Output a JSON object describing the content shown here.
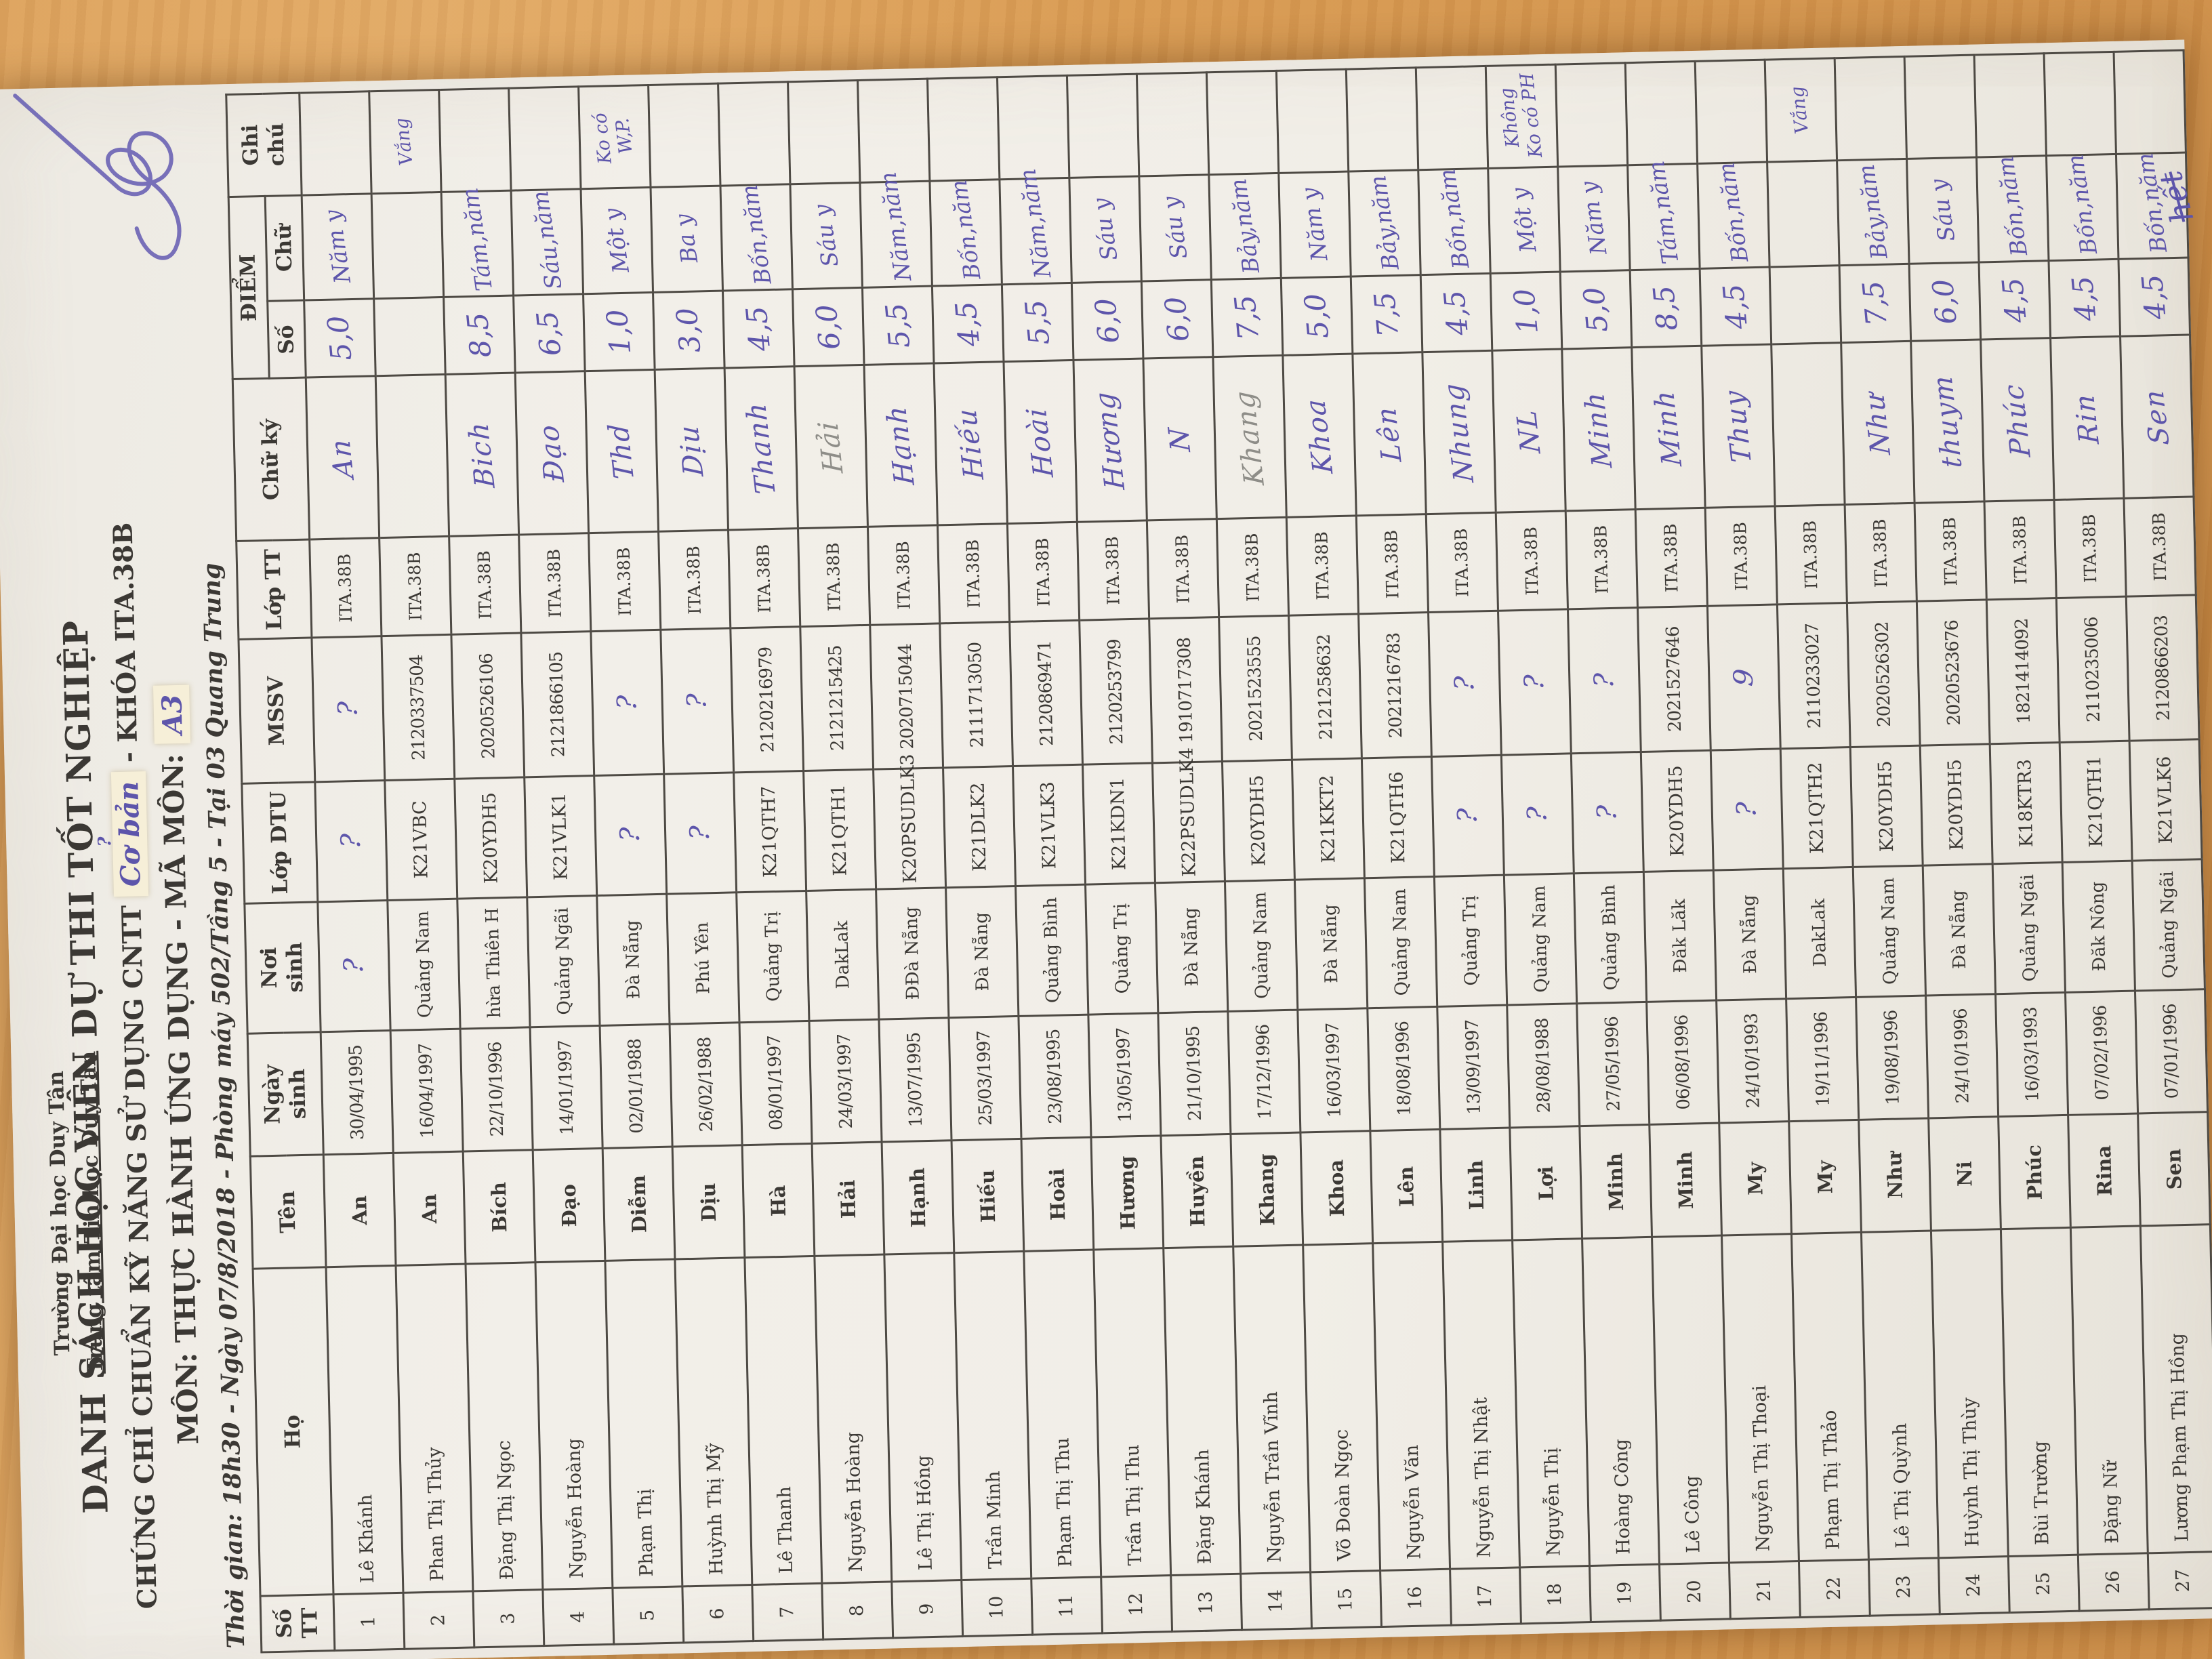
{
  "photo": {
    "surface": "wooden-desk",
    "wood_color": "#d89a52",
    "paper_color": "#f1eee8",
    "pen_color": "#5d55ab",
    "pencil_color": "#8e8d88"
  },
  "header": {
    "org_line1": "Trường Đại học Duy Tân",
    "org_line2": "Trung tâm Tin học Duy Tân",
    "title": "DANH SÁCH HỌC VIÊN DỰ THI TỐT NGHIỆP",
    "subtitle_prefix": "CHỨNG CHỈ CHUẨN KỸ NĂNG SỬ DỤNG CNTT",
    "subtitle_handwritten": "Cơ bản",
    "subtitle_hand_mark": "?",
    "subtitle_suffix": "- KHÓA ITA.38B",
    "mon_prefix": "MÔN: THỰC HÀNH ỨNG DỤNG - MÃ MÔN:",
    "mon_handwritten": "A3",
    "time_line": "Thời gian: 18h30 - Ngày 07/8/2018 - Phòng máy 502/Tầng 5 - Tại 03 Quang Trung"
  },
  "columns": {
    "stt": "Số\nTT",
    "ho": "Họ",
    "ten": "Tên",
    "ngay_sinh": "Ngày\nsinh",
    "noi_sinh": "Nơi\nsinh",
    "lop_dtu": "Lớp DTU",
    "mssv": "MSSV",
    "lop_tt": "Lớp TT",
    "chu_ky": "Chữ ký",
    "diem": "ĐIỂM",
    "diem_so": "Số",
    "diem_chu": "Chữ",
    "ghi_chu": "Ghi\nchú"
  },
  "rows": [
    {
      "stt": "1",
      "ho": "Lê Khánh",
      "ten": "An",
      "ngay_sinh": "30/04/1995",
      "noi_sinh": "?",
      "lop_dtu": "?",
      "mssv": "?",
      "lop_tt": "ITA.38B",
      "chu_ky": "An",
      "diem_so": "5,0",
      "diem_chu": "Năm y",
      "ghi_chu": ""
    },
    {
      "stt": "2",
      "ho": "Phan Thị Thủy",
      "ten": "An",
      "ngay_sinh": "16/04/1997",
      "noi_sinh": "Quảng Nam",
      "lop_dtu": "K21VBC",
      "mssv": "2120337504",
      "lop_tt": "ITA.38B",
      "chu_ky": "",
      "absent": true,
      "diem_so": "",
      "diem_chu": "",
      "ghi_chu": "Vắng"
    },
    {
      "stt": "3",
      "ho": "Đặng Thị Ngọc",
      "ten": "Bích",
      "ngay_sinh": "22/10/1996",
      "noi_sinh": "hừa Thiên H",
      "lop_dtu": "K20YDH5",
      "mssv": "2020526106",
      "lop_tt": "ITA.38B",
      "chu_ky": "Bich",
      "diem_so": "8,5",
      "diem_chu": "Tám,năm",
      "ghi_chu": ""
    },
    {
      "stt": "4",
      "ho": "Nguyễn Hoàng",
      "ten": "Đạo",
      "ngay_sinh": "14/01/1997",
      "noi_sinh": "Quảng Ngãi",
      "lop_dtu": "K21VLK1",
      "mssv": "2121866105",
      "lop_tt": "ITA.38B",
      "chu_ky": "Đạo",
      "diem_so": "6,5",
      "diem_chu": "Sáu,năm",
      "ghi_chu": ""
    },
    {
      "stt": "5",
      "ho": "Phạm Thị",
      "ten": "Diễm",
      "ngay_sinh": "02/01/1988",
      "noi_sinh": "Đà Nẵng",
      "lop_dtu": "?",
      "mssv": "?",
      "lop_tt": "ITA.38B",
      "chu_ky": "Thd",
      "diem_so": "1,0",
      "diem_chu": "Một y",
      "ghi_chu": "Ko có\nW,P."
    },
    {
      "stt": "6",
      "ho": "Huỳnh Thị Mỹ",
      "ten": "Dịu",
      "ngay_sinh": "26/02/1988",
      "noi_sinh": "Phú Yên",
      "lop_dtu": "?",
      "mssv": "?",
      "lop_tt": "ITA.38B",
      "chu_ky": "Dịu",
      "diem_so": "3,0",
      "diem_chu": "Ba y",
      "ghi_chu": ""
    },
    {
      "stt": "7",
      "ho": "Lê Thanh",
      "ten": "Hà",
      "ngay_sinh": "08/01/1997",
      "noi_sinh": "Quảng Trị",
      "lop_dtu": "K21QTH7",
      "mssv": "2120216979",
      "lop_tt": "ITA.38B",
      "chu_ky": "Thanh",
      "diem_so": "4,5",
      "diem_chu": "Bốn,năm",
      "ghi_chu": ""
    },
    {
      "stt": "8",
      "ho": "Nguyễn Hoàng",
      "ten": "Hải",
      "ngay_sinh": "24/03/1997",
      "noi_sinh": "DakLak",
      "lop_dtu": "K21QTH1",
      "mssv": "2121215425",
      "lop_tt": "ITA.38B",
      "chu_ky": "Hải",
      "pencil": true,
      "diem_so": "6,0",
      "diem_chu": "Sáu y",
      "ghi_chu": ""
    },
    {
      "stt": "9",
      "ho": "Lê Thị Hồng",
      "ten": "Hạnh",
      "ngay_sinh": "13/07/1995",
      "noi_sinh": "ĐĐà Nẵng",
      "lop_dtu": "K20PSUDLK3",
      "mssv": "2020715044",
      "lop_tt": "ITA.38B",
      "chu_ky": "Hạnh",
      "diem_so": "5,5",
      "diem_chu": "Năm,năm",
      "ghi_chu": ""
    },
    {
      "stt": "10",
      "ho": "Trần Minh",
      "ten": "Hiếu",
      "ngay_sinh": "25/03/1997",
      "noi_sinh": "Đà Nẵng",
      "lop_dtu": "K21DLK2",
      "mssv": "2111713050",
      "lop_tt": "ITA.38B",
      "chu_ky": "Hiếu",
      "diem_so": "4,5",
      "diem_chu": "Bốn,năm",
      "ghi_chu": ""
    },
    {
      "stt": "11",
      "ho": "Phạm Thị Thu",
      "ten": "Hoài",
      "ngay_sinh": "23/08/1995",
      "noi_sinh": "Quảng Bình",
      "lop_dtu": "K21VLK3",
      "mssv": "2120869471",
      "lop_tt": "ITA.38B",
      "chu_ky": "Hoài",
      "diem_so": "5,5",
      "diem_chu": "Năm,năm",
      "ghi_chu": ""
    },
    {
      "stt": "12",
      "ho": "Trần Thị Thu",
      "ten": "Hương",
      "ngay_sinh": "13/05/1997",
      "noi_sinh": "Quảng Trị",
      "lop_dtu": "K21KDN1",
      "mssv": "2120253799",
      "lop_tt": "ITA.38B",
      "chu_ky": "Hương",
      "diem_so": "6,0",
      "diem_chu": "Sáu y",
      "ghi_chu": ""
    },
    {
      "stt": "13",
      "ho": "Đặng Khánh",
      "ten": "Huyền",
      "ngay_sinh": "21/10/1995",
      "noi_sinh": "Đà Nẵng",
      "lop_dtu": "K22PSUDLK4",
      "mssv": "1910717308",
      "lop_tt": "ITA.38B",
      "chu_ky": "N",
      "diem_so": "6,0",
      "diem_chu": "Sáu y",
      "ghi_chu": ""
    },
    {
      "stt": "14",
      "ho": "Nguyễn Trần Vĩnh",
      "ten": "Khang",
      "ngay_sinh": "17/12/1996",
      "noi_sinh": "Quảng Nam",
      "lop_dtu": "K20YDH5",
      "mssv": "2021523555",
      "lop_tt": "ITA.38B",
      "chu_ky": "Khang",
      "pencil": true,
      "diem_so": "7,5",
      "diem_chu": "Bảy,năm",
      "ghi_chu": ""
    },
    {
      "stt": "15",
      "ho": "Võ Đoàn Ngọc",
      "ten": "Khoa",
      "ngay_sinh": "16/03/1997",
      "noi_sinh": "Đà Nẵng",
      "lop_dtu": "K21KKT2",
      "mssv": "2121258632",
      "lop_tt": "ITA.38B",
      "chu_ky": "Khoa",
      "diem_so": "5,0",
      "diem_chu": "Năm y",
      "ghi_chu": ""
    },
    {
      "stt": "16",
      "ho": "Nguyễn Văn",
      "ten": "Lên",
      "ngay_sinh": "18/08/1996",
      "noi_sinh": "Quảng Nam",
      "lop_dtu": "K21QTH6",
      "mssv": "2021216783",
      "lop_tt": "ITA.38B",
      "chu_ky": "Lên",
      "diem_so": "7,5",
      "diem_chu": "Bảy,năm",
      "ghi_chu": ""
    },
    {
      "stt": "17",
      "ho": "Nguyễn Thị Nhật",
      "ten": "Linh",
      "ngay_sinh": "13/09/1997",
      "noi_sinh": "Quảng Trị",
      "lop_dtu": "?",
      "mssv": "?",
      "lop_tt": "ITA.38B",
      "chu_ky": "Nhung",
      "diem_so": "4,5",
      "diem_chu": "Bốn,năm",
      "ghi_chu": ""
    },
    {
      "stt": "18",
      "ho": "Nguyễn Thị",
      "ten": "Lợi",
      "ngay_sinh": "28/08/1988",
      "noi_sinh": "Quảng Nam",
      "lop_dtu": "?",
      "mssv": "?",
      "lop_tt": "ITA.38B",
      "chu_ky": "NL",
      "diem_so": "1,0",
      "diem_chu": "Một y",
      "ghi_chu": "Không\nKo có PH"
    },
    {
      "stt": "19",
      "ho": "Hoàng Công",
      "ten": "Minh",
      "ngay_sinh": "27/05/1996",
      "noi_sinh": "Quảng Bình",
      "lop_dtu": "?",
      "mssv": "?",
      "lop_tt": "ITA.38B",
      "chu_ky": "Minh",
      "diem_so": "5,0",
      "diem_chu": "Năm y",
      "ghi_chu": ""
    },
    {
      "stt": "20",
      "ho": "Lê Công",
      "ten": "Minh",
      "ngay_sinh": "06/08/1996",
      "noi_sinh": "Đăk Lăk",
      "lop_dtu": "K20YDH5",
      "mssv": "2021527646",
      "lop_tt": "ITA.38B",
      "chu_ky": "Minh",
      "diem_so": "8,5",
      "diem_chu": "Tám,năm",
      "ghi_chu": ""
    },
    {
      "stt": "21",
      "ho": "Nguyễn Thị Thoại",
      "ten": "My",
      "ngay_sinh": "24/10/1993",
      "noi_sinh": "Đà Nẵng",
      "lop_dtu": "?",
      "mssv": "9",
      "lop_tt": "ITA.38B",
      "chu_ky": "Thuy",
      "diem_so": "4,5",
      "diem_chu": "Bốn,năm",
      "ghi_chu": ""
    },
    {
      "stt": "22",
      "ho": "Phạm Thị Thảo",
      "ten": "My",
      "ngay_sinh": "19/11/1996",
      "noi_sinh": "DakLak",
      "lop_dtu": "K21QTH2",
      "mssv": "2110233027",
      "lop_tt": "ITA.38B",
      "chu_ky": "",
      "absent": true,
      "diem_so": "",
      "diem_chu": "",
      "ghi_chu": "Vắng"
    },
    {
      "stt": "23",
      "ho": "Lê Thị Quỳnh",
      "ten": "Như",
      "ngay_sinh": "19/08/1996",
      "noi_sinh": "Quảng Nam",
      "lop_dtu": "K20YDH5",
      "mssv": "2020526302",
      "lop_tt": "ITA.38B",
      "chu_ky": "Như",
      "diem_so": "7,5",
      "diem_chu": "Bảy,năm",
      "ghi_chu": ""
    },
    {
      "stt": "24",
      "ho": "Huỳnh Thị Thùy",
      "ten": "Ni",
      "ngay_sinh": "24/10/1996",
      "noi_sinh": "Đà Nẵng",
      "lop_dtu": "K20YDH5",
      "mssv": "2020523676",
      "lop_tt": "ITA.38B",
      "chu_ky": "thuym",
      "diem_so": "6,0",
      "diem_chu": "Sáu y",
      "ghi_chu": ""
    },
    {
      "stt": "25",
      "ho": "Bùi Trường",
      "ten": "Phúc",
      "ngay_sinh": "16/03/1993",
      "noi_sinh": "Quảng Ngãi",
      "lop_dtu": "K18KTR3",
      "mssv": "1821414092",
      "lop_tt": "ITA.38B",
      "chu_ky": "Phúc",
      "diem_so": "4,5",
      "diem_chu": "Bốn,năm",
      "ghi_chu": ""
    },
    {
      "stt": "26",
      "ho": "Đặng Nữ",
      "ten": "Rina",
      "ngay_sinh": "07/02/1996",
      "noi_sinh": "Đăk Nông",
      "lop_dtu": "K21QTH1",
      "mssv": "2110235006",
      "lop_tt": "ITA.38B",
      "chu_ky": "Rin",
      "diem_so": "4,5",
      "diem_chu": "Bốn,năm",
      "ghi_chu": ""
    },
    {
      "stt": "27",
      "ho": "Lương Phạm Thị Hồng",
      "ten": "Sen",
      "ngay_sinh": "07/01/1996",
      "noi_sinh": "Quảng Ngãi",
      "lop_dtu": "K21VLK6",
      "mssv": "2120866203",
      "lop_tt": "ITA.38B",
      "chu_ky": "Sen",
      "diem_so": "4,5",
      "diem_chu": "Bốn,năm",
      "ghi_chu": ""
    }
  ],
  "annotations": {
    "end_note": "hết",
    "scribble": "pen-scribble"
  }
}
